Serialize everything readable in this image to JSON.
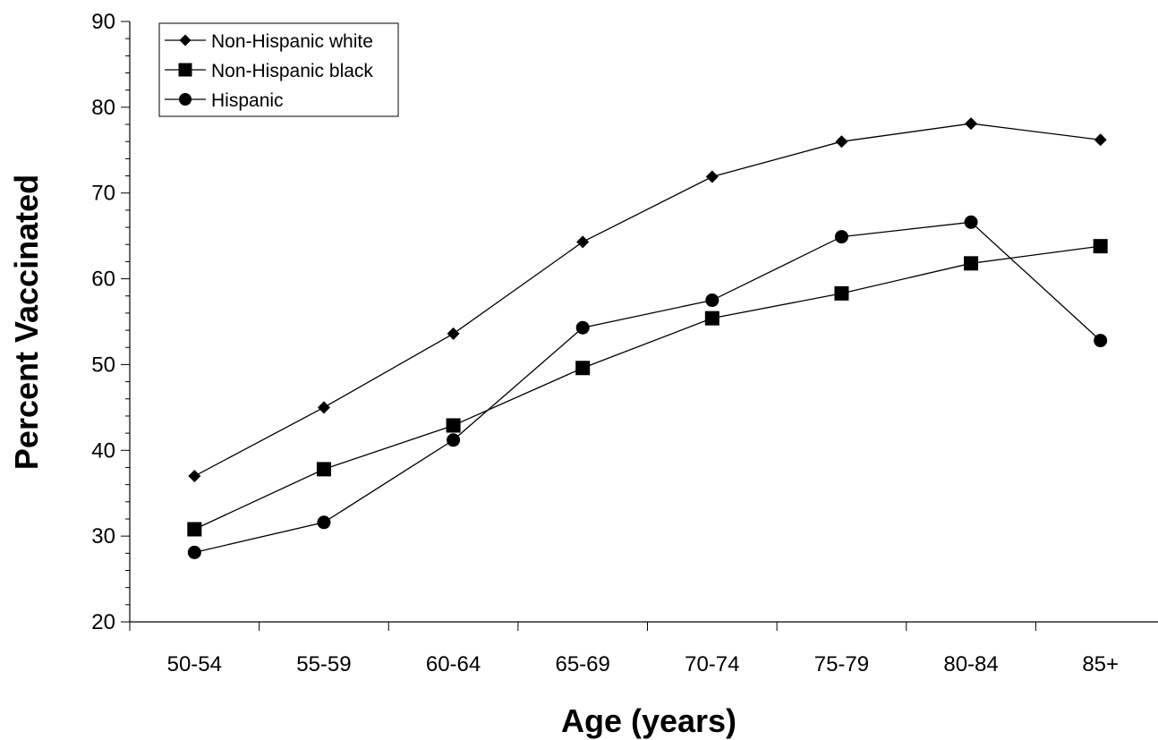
{
  "chart_data": {
    "type": "line",
    "title": "",
    "xlabel": "Age (years)",
    "ylabel": "Percent Vaccinated",
    "categories": [
      "50-54",
      "55-59",
      "60-64",
      "65-69",
      "70-74",
      "75-79",
      "80-84",
      "85+"
    ],
    "ylim": [
      20,
      90
    ],
    "yticks": [
      20,
      30,
      40,
      50,
      60,
      70,
      80,
      90
    ],
    "grid": false,
    "legend_position": "top-left",
    "series": [
      {
        "name": "Non-Hispanic white",
        "marker": "diamond",
        "values": [
          37.0,
          45.0,
          53.6,
          64.3,
          71.9,
          76.0,
          78.1,
          76.2
        ]
      },
      {
        "name": "Non-Hispanic black",
        "marker": "square",
        "values": [
          30.8,
          37.8,
          42.9,
          49.6,
          55.4,
          58.3,
          61.8,
          63.8
        ]
      },
      {
        "name": "Hispanic",
        "marker": "circle",
        "values": [
          28.1,
          31.6,
          41.2,
          54.3,
          57.5,
          64.9,
          66.6,
          52.8
        ]
      }
    ],
    "colors": {
      "line": "#000000",
      "marker": "#000000",
      "background": "#ffffff"
    }
  }
}
